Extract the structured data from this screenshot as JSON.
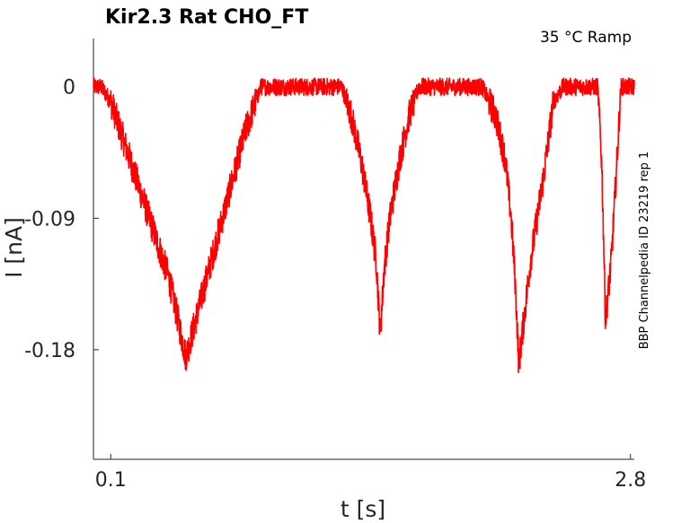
{
  "chart_data": {
    "type": "line",
    "title": "Kir2.3  Rat  CHO_FT",
    "annotation": "35 °C  Ramp",
    "side_label": "BBP Channelpedia ID 23219 rep 1",
    "xlabel": "t [s]",
    "ylabel": "I [nA]",
    "xlim": [
      0.01,
      2.82
    ],
    "ylim": [
      -0.255,
      0.033
    ],
    "x_ticks": [
      0.1,
      2.8
    ],
    "x_tick_labels": [
      "0.1",
      "2.8"
    ],
    "y_ticks": [
      0,
      -0.09,
      -0.18
    ],
    "y_tick_labels": [
      "0",
      "-0.09",
      "-0.18"
    ],
    "grid": false,
    "series": [
      {
        "color": "#ff0000",
        "noise": 0.006,
        "x": [
          0.01,
          0.05,
          0.1,
          0.2,
          0.3,
          0.4,
          0.45,
          0.49,
          0.53,
          0.6,
          0.7,
          0.8,
          0.88,
          0.92,
          1.0,
          1.1,
          1.2,
          1.26,
          1.3,
          1.35,
          1.4,
          1.45,
          1.48,
          1.5,
          1.52,
          1.55,
          1.6,
          1.65,
          1.7,
          1.72,
          1.8,
          1.9,
          2.0,
          2.03,
          2.1,
          2.15,
          2.18,
          2.2,
          2.22,
          2.28,
          2.35,
          2.4,
          2.45,
          2.5,
          2.55,
          2.6,
          2.63,
          2.65,
          2.66,
          2.67,
          2.7,
          2.73,
          2.75,
          2.8,
          2.82
        ],
        "y": [
          0,
          0,
          -0.01,
          -0.05,
          -0.09,
          -0.13,
          -0.16,
          -0.185,
          -0.165,
          -0.13,
          -0.08,
          -0.03,
          0.0,
          0.0,
          0.0,
          0.0,
          0.0,
          0.0,
          0.0,
          -0.02,
          -0.05,
          -0.09,
          -0.12,
          -0.17,
          -0.125,
          -0.09,
          -0.05,
          -0.02,
          0.0,
          0.0,
          0.0,
          0.0,
          0.0,
          0.0,
          -0.02,
          -0.05,
          -0.09,
          -0.13,
          -0.19,
          -0.12,
          -0.06,
          -0.01,
          0.0,
          0.0,
          0.0,
          0.0,
          0.0,
          -0.05,
          -0.1,
          -0.16,
          -0.12,
          -0.05,
          0.0,
          0.0,
          0.0
        ]
      }
    ]
  }
}
